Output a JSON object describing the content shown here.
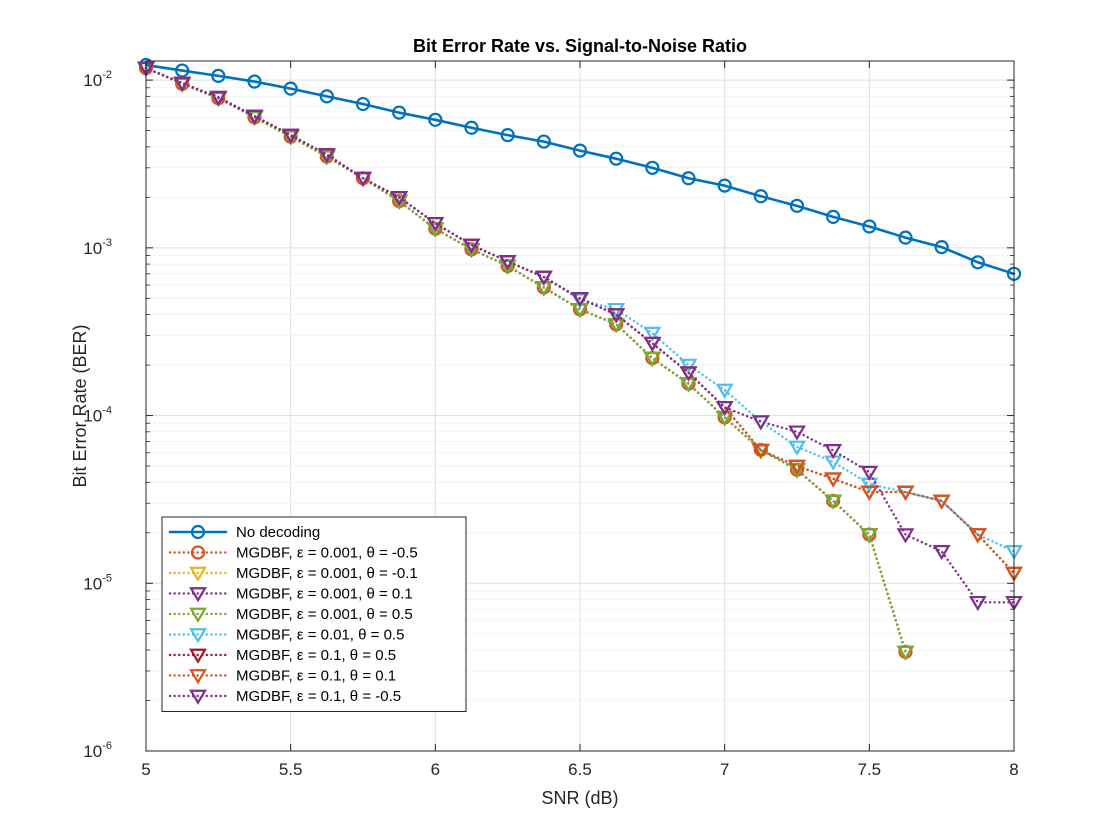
{
  "chart_data": {
    "type": "line",
    "title": "Bit Error Rate vs. Signal-to-Noise Ratio",
    "xlabel": "SNR (dB)",
    "ylabel": "Bit Error Rate (BER)",
    "xlim": [
      5,
      8
    ],
    "ylim": [
      1e-06,
      0.013
    ],
    "yscale": "log",
    "grid": true,
    "minor_grid": true,
    "legend_position": "bottom-left",
    "x_ticks": [
      "5",
      "5.5",
      "6",
      "6.5",
      "7",
      "7.5",
      "8"
    ],
    "y_ticks": [
      {
        "base": "10",
        "exp": "-6",
        "value": 1e-06
      },
      {
        "base": "10",
        "exp": "-5",
        "value": 1e-05
      },
      {
        "base": "10",
        "exp": "-4",
        "value": 0.0001
      },
      {
        "base": "10",
        "exp": "-3",
        "value": 0.001
      },
      {
        "base": "10",
        "exp": "-2",
        "value": 0.01
      }
    ],
    "series": [
      {
        "name": "No decoding",
        "color": "#0072BD",
        "linestyle": "solid",
        "marker": "circle",
        "x": [
          5,
          5.125,
          5.25,
          5.375,
          5.5,
          5.625,
          5.75,
          5.875,
          6,
          6.125,
          6.25,
          6.375,
          6.5,
          6.625,
          6.75,
          6.875,
          7,
          7.125,
          7.25,
          7.375,
          7.5,
          7.625,
          7.75,
          7.875,
          8
        ],
        "y": [
          0.0123,
          0.0114,
          0.0106,
          0.0098,
          0.0089,
          0.008,
          0.0072,
          0.0064,
          0.0058,
          0.0052,
          0.0047,
          0.0043,
          0.0038,
          0.0034,
          0.003,
          0.0026,
          0.00235,
          0.00203,
          0.00178,
          0.00153,
          0.00134,
          0.00115,
          0.00101,
          0.00082,
          0.0007
        ]
      },
      {
        "name": "MGDBF, ε = 0.001, θ = -0.5",
        "color": "#D95319",
        "linestyle": "dotted",
        "marker": "circle",
        "x": [
          5,
          5.125,
          5.25,
          5.375,
          5.5,
          5.625,
          5.75,
          5.875,
          6,
          6.125,
          6.25,
          6.375,
          6.5,
          6.625,
          6.75,
          6.875,
          7,
          7.125,
          7.25,
          7.375,
          7.5,
          7.625
        ],
        "y": [
          0.0118,
          0.0095,
          0.0078,
          0.006,
          0.0046,
          0.0035,
          0.0026,
          0.0019,
          0.0013,
          0.00098,
          0.00078,
          0.00058,
          0.00043,
          0.00035,
          0.00022,
          0.000155,
          9.75e-05,
          6.25e-05,
          4.75e-05,
          3.1e-05,
          1.95e-05,
          3.9e-06
        ]
      },
      {
        "name": "MGDBF, ε = 0.001, θ = -0.1",
        "color": "#EDB120",
        "linestyle": "dotted",
        "marker": "triangle-down",
        "x": [
          5,
          5.125,
          5.25,
          5.375,
          5.5,
          5.625,
          5.75,
          5.875,
          6,
          6.125,
          6.25,
          6.375,
          6.5,
          6.625,
          6.75,
          6.875,
          7,
          7.125,
          7.25,
          7.375,
          7.5,
          7.625
        ],
        "y": [
          0.0118,
          0.0095,
          0.0078,
          0.006,
          0.0046,
          0.0035,
          0.0026,
          0.0019,
          0.0013,
          0.00098,
          0.00078,
          0.00058,
          0.00043,
          0.00035,
          0.00022,
          0.000155,
          9.75e-05,
          6.25e-05,
          4.75e-05,
          3.1e-05,
          1.95e-05,
          3.9e-06
        ]
      },
      {
        "name": "MGDBF, ε = 0.001, θ = 0.1",
        "color": "#7E2F8E",
        "linestyle": "dotted",
        "marker": "triangle-down",
        "x": [
          5,
          5.125,
          5.25,
          5.375,
          5.5,
          5.625,
          5.75,
          5.875,
          6,
          6.125,
          6.25,
          6.375,
          6.5,
          6.625,
          6.75,
          6.875,
          7,
          7.125,
          7.25,
          7.375,
          7.5,
          7.625
        ],
        "y": [
          0.0118,
          0.0095,
          0.0078,
          0.006,
          0.0046,
          0.0035,
          0.0026,
          0.0019,
          0.0013,
          0.00098,
          0.00078,
          0.00058,
          0.00043,
          0.00035,
          0.00022,
          0.000155,
          9.75e-05,
          6.25e-05,
          4.75e-05,
          3.1e-05,
          1.95e-05,
          3.9e-06
        ]
      },
      {
        "name": "MGDBF, ε = 0.001, θ = 0.5",
        "color": "#77AC30",
        "linestyle": "dotted",
        "marker": "triangle-down",
        "x": [
          5,
          5.125,
          5.25,
          5.375,
          5.5,
          5.625,
          5.75,
          5.875,
          6,
          6.125,
          6.25,
          6.375,
          6.5,
          6.625,
          6.75,
          6.875,
          7,
          7.125,
          7.25,
          7.375,
          7.5,
          7.625
        ],
        "y": [
          0.0118,
          0.0095,
          0.0078,
          0.006,
          0.0046,
          0.0035,
          0.0026,
          0.0019,
          0.0013,
          0.00098,
          0.00078,
          0.00058,
          0.00043,
          0.00035,
          0.00022,
          0.000155,
          9.75e-05,
          6.25e-05,
          4.75e-05,
          3.1e-05,
          1.95e-05,
          3.9e-06
        ]
      },
      {
        "name": "MGDBF, ε = 0.01, θ = 0.5",
        "color": "#4DBEEE",
        "linestyle": "dotted",
        "marker": "triangle-down",
        "x": [
          5,
          5.125,
          5.25,
          5.375,
          5.5,
          5.625,
          5.75,
          5.875,
          6,
          6.125,
          6.25,
          6.375,
          6.5,
          6.625,
          6.75,
          6.875,
          7,
          7.125,
          7.25,
          7.375,
          7.5,
          7.625,
          7.75,
          7.875,
          8
        ],
        "y": [
          0.0118,
          0.0096,
          0.0079,
          0.0061,
          0.0047,
          0.0036,
          0.0026,
          0.002,
          0.0014,
          0.00104,
          0.00083,
          0.00067,
          0.00049,
          0.00043,
          0.00031,
          0.0002,
          0.000142,
          9.2e-05,
          6.5e-05,
          5.3e-05,
          3.9e-05,
          3.5e-05,
          3.1e-05,
          1.95e-05,
          1.55e-05
        ]
      },
      {
        "name": "MGDBF, ε = 0.1, θ = 0.5",
        "color": "#A2142F",
        "linestyle": "dotted",
        "marker": "triangle-down",
        "x": [
          5,
          5.125,
          5.25,
          5.375,
          5.5,
          5.625,
          5.75,
          5.875,
          6,
          6.125,
          6.25,
          6.375,
          6.5,
          6.625,
          6.75,
          6.875,
          7,
          7.125,
          7.25,
          7.375,
          7.5,
          7.625,
          7.75,
          7.875,
          8
        ],
        "y": [
          0.0118,
          0.0096,
          0.0079,
          0.0061,
          0.0047,
          0.0036,
          0.0026,
          0.002,
          0.0014,
          0.00104,
          0.00083,
          0.00067,
          0.0005,
          0.0004,
          0.00027,
          0.00018,
          0.000112,
          6.2e-05,
          5e-05,
          4.2e-05,
          3.5e-05,
          3.5e-05,
          3.1e-05,
          1.95e-05,
          1.15e-05
        ]
      },
      {
        "name": "MGDBF, ε = 0.1, θ = 0.1",
        "color": "#D95319",
        "linestyle": "dotted",
        "marker": "triangle-down",
        "x": [
          5,
          5.125,
          5.25,
          5.375,
          5.5,
          5.625,
          5.75,
          5.875,
          6,
          6.125,
          6.25,
          6.375,
          6.5,
          6.625,
          6.75,
          6.875,
          7,
          7.125,
          7.25,
          7.375,
          7.5,
          7.625,
          7.75,
          7.875,
          8
        ],
        "y": [
          0.0118,
          0.0096,
          0.0079,
          0.0061,
          0.0047,
          0.0036,
          0.0026,
          0.002,
          0.0014,
          0.00104,
          0.00083,
          0.00067,
          0.0005,
          0.0004,
          0.00027,
          0.00018,
          0.000112,
          6.2e-05,
          5e-05,
          4.2e-05,
          3.5e-05,
          3.5e-05,
          3.1e-05,
          1.95e-05,
          1.15e-05
        ]
      },
      {
        "name": "MGDBF, ε = 0.1, θ = -0.5",
        "color": "#7E2F8E",
        "linestyle": "dotted",
        "marker": "triangle-down",
        "x": [
          5,
          5.125,
          5.25,
          5.375,
          5.5,
          5.625,
          5.75,
          5.875,
          6,
          6.125,
          6.25,
          6.375,
          6.5,
          6.625,
          6.75,
          6.875,
          7,
          7.125,
          7.25,
          7.375,
          7.5,
          7.625,
          7.75,
          7.875,
          8
        ],
        "y": [
          0.0118,
          0.0096,
          0.0079,
          0.0061,
          0.0047,
          0.0036,
          0.0026,
          0.002,
          0.0014,
          0.00104,
          0.00083,
          0.00067,
          0.0005,
          0.0004,
          0.00027,
          0.00018,
          0.000112,
          9.2e-05,
          8e-05,
          6.2e-05,
          4.6e-05,
          1.95e-05,
          1.55e-05,
          7.7e-06,
          7.7e-06
        ]
      }
    ]
  }
}
